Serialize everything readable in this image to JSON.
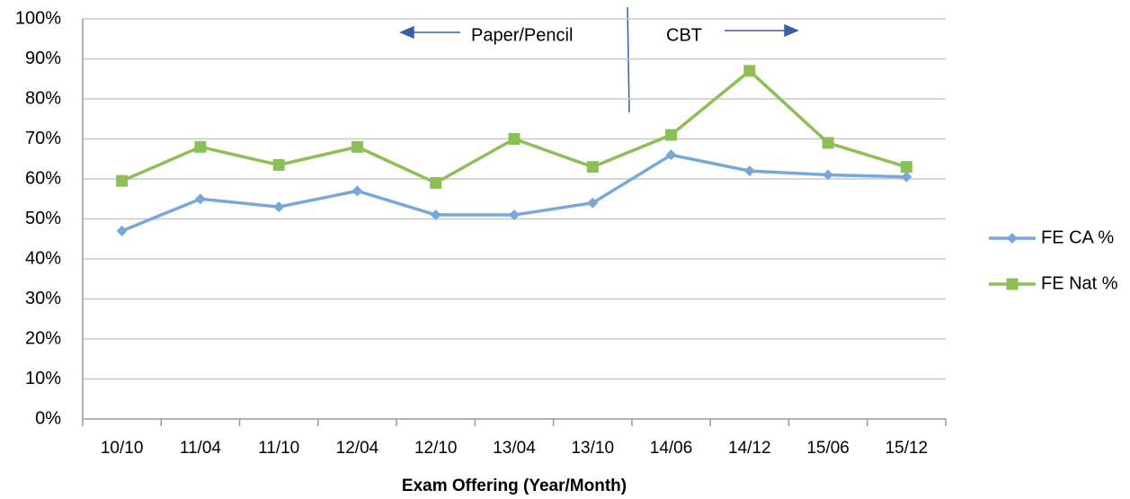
{
  "chart_data": {
    "type": "line",
    "x_label": "Exam Offering (Year/Month)",
    "categories": [
      "10/10",
      "11/04",
      "11/10",
      "12/04",
      "12/10",
      "13/04",
      "13/10",
      "14/06",
      "14/12",
      "15/06",
      "15/12"
    ],
    "series": [
      {
        "name": "FE CA %",
        "color": "#78a7dc",
        "marker": "diamond",
        "values": [
          47,
          55,
          53,
          57,
          51,
          51,
          54,
          66,
          62,
          61,
          60.5
        ]
      },
      {
        "name": "FE Nat %",
        "color": "#8cc056",
        "marker": "square",
        "values": [
          59.5,
          68,
          63.5,
          68,
          59,
          70,
          63,
          71,
          87,
          69,
          63
        ]
      }
    ],
    "ylim": [
      0,
      100
    ],
    "yticks": [
      {
        "value": 0,
        "label": "0%"
      },
      {
        "value": 10,
        "label": "10%"
      },
      {
        "value": 20,
        "label": "20%"
      },
      {
        "value": 30,
        "label": "30%"
      },
      {
        "value": 40,
        "label": "40%"
      },
      {
        "value": 50,
        "label": "50%"
      },
      {
        "value": 60,
        "label": "60%"
      },
      {
        "value": 70,
        "label": "70%"
      },
      {
        "value": 80,
        "label": "80%"
      },
      {
        "value": 90,
        "label": "90%"
      },
      {
        "value": 100,
        "label": "100%"
      }
    ],
    "grid": true,
    "legend": "right",
    "annotations": [
      "Paper/Pencil",
      "CBT"
    ]
  }
}
